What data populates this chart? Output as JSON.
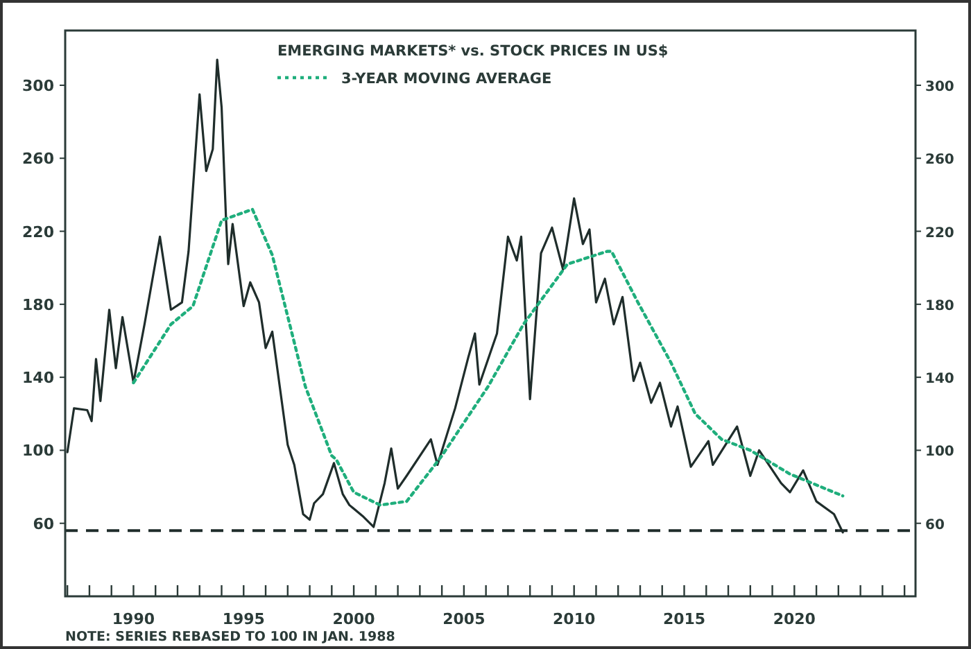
{
  "chart_data": {
    "type": "line",
    "title": "EMERGING MARKETS* vs. STOCK PRICES IN US$",
    "xlim": [
      1986.9,
      2025.5
    ],
    "xticks": [
      {
        "value": 1987,
        "label": null
      },
      {
        "value": 1988,
        "label": null
      },
      {
        "value": 1989,
        "label": null
      },
      1990,
      {
        "value": 1991,
        "label": null
      },
      {
        "value": 1992,
        "label": null
      },
      {
        "value": 1993,
        "label": null
      },
      {
        "value": 1994,
        "label": null
      },
      1995,
      {
        "value": 1996,
        "label": null
      },
      {
        "value": 1997,
        "label": null
      },
      {
        "value": 1998,
        "label": null
      },
      {
        "value": 1999,
        "label": null
      },
      2000,
      {
        "value": 2001,
        "label": null
      },
      {
        "value": 2002,
        "label": null
      },
      {
        "value": 2003,
        "label": null
      },
      {
        "value": 2004,
        "label": null
      },
      2005,
      {
        "value": 2006,
        "label": null
      },
      {
        "value": 2007,
        "label": null
      },
      {
        "value": 2008,
        "label": null
      },
      {
        "value": 2009,
        "label": null
      },
      2010,
      {
        "value": 2011,
        "label": null
      },
      {
        "value": 2012,
        "label": null
      },
      {
        "value": 2013,
        "label": null
      },
      {
        "value": 2014,
        "label": null
      },
      2015,
      {
        "value": 2016,
        "label": null
      },
      {
        "value": 2017,
        "label": null
      },
      {
        "value": 2018,
        "label": null
      },
      {
        "value": 2019,
        "label": null
      },
      2020,
      {
        "value": 2021,
        "label": null
      },
      {
        "value": 2022,
        "label": null
      },
      {
        "value": 2023,
        "label": null
      },
      {
        "value": 2024,
        "label": null
      },
      {
        "value": 2025,
        "label": null
      }
    ],
    "ylim": [
      20,
      330
    ],
    "yticks": [
      60,
      100,
      140,
      180,
      220,
      260,
      300
    ],
    "y2lim": [
      20,
      330
    ],
    "y2ticks": [
      60,
      100,
      140,
      180,
      220,
      260,
      300
    ],
    "grid": false,
    "legend": "top",
    "ref_lines": [
      {
        "axis": "y",
        "value": 56,
        "color": "#1f2d2b",
        "line_style": "dashed"
      }
    ],
    "annotations": [
      "NOTE: SERIES REBASED TO 100 IN JAN. 1988"
    ],
    "series": [
      {
        "color": "#1f2d2b",
        "line_style": "solid",
        "x": [
          1987.0,
          1987.3,
          1987.9,
          1988.1,
          1988.3,
          1988.5,
          1988.9,
          1989.2,
          1989.5,
          1990.0,
          1990.5,
          1991.2,
          1991.7,
          1992.2,
          1992.5,
          1993.0,
          1993.3,
          1993.6,
          1993.8,
          1994.0,
          1994.2,
          1994.3,
          1994.5,
          1995.0,
          1995.3,
          1995.7,
          1996.0,
          1996.3,
          1997.0,
          1997.3,
          1997.7,
          1998.0,
          1998.2,
          1998.6,
          1999.1,
          1999.5,
          1999.8,
          2000.4,
          2000.9,
          2001.4,
          2001.7,
          2002.0,
          2002.4,
          2003.5,
          2003.8,
          2004.6,
          2005.2,
          2005.5,
          2005.7,
          2006.5,
          2007.0,
          2007.4,
          2007.6,
          2008.0,
          2008.5,
          2009.0,
          2009.5,
          2010.0,
          2010.4,
          2010.7,
          2011.0,
          2011.4,
          2011.8,
          2012.2,
          2012.7,
          2013.0,
          2013.5,
          2013.9,
          2014.4,
          2014.7,
          2015.3,
          2016.1,
          2016.3,
          2017.4,
          2018.0,
          2018.4,
          2019.4,
          2019.8,
          2020.4,
          2021.0,
          2021.8,
          2022.2
        ],
        "values": [
          99,
          123,
          122,
          116,
          150,
          127,
          177,
          145,
          173,
          137,
          169,
          217,
          177,
          181,
          209,
          295,
          253,
          265,
          314,
          288,
          227,
          202,
          224,
          179,
          192,
          181,
          156,
          165,
          103,
          92,
          65,
          62,
          71,
          76,
          93,
          76,
          70,
          64,
          58,
          82,
          101,
          79,
          86,
          106,
          92,
          123,
          151,
          164,
          136,
          164,
          217,
          204,
          217,
          128,
          208,
          222,
          199,
          238,
          213,
          221,
          181,
          194,
          169,
          184,
          138,
          148,
          126,
          137,
          113,
          124,
          91,
          105,
          92,
          113,
          86,
          100,
          82,
          77,
          89,
          72,
          65,
          55
        ]
      },
      {
        "name": "3-YEAR MOVING AVERAGE",
        "color": "#1fae7c",
        "line_style": "dotted",
        "x": [
          1990.0,
          1991.7,
          1992.7,
          1994.0,
          1995.4,
          1996.3,
          1997.8,
          1999.0,
          1999.2,
          2000.0,
          2001.2,
          2002.4,
          2004.0,
          2006.1,
          2007.7,
          2009.7,
          2011.5,
          2011.7,
          2012.9,
          2014.4,
          2015.5,
          2016.7,
          2018.0,
          2019.8,
          2022.2
        ],
        "values": [
          137,
          169,
          179,
          226,
          232,
          207,
          135,
          97,
          95,
          77,
          70,
          72,
          97,
          135,
          169,
          202,
          209,
          209,
          181,
          148,
          120,
          106,
          100,
          87,
          75
        ]
      }
    ]
  }
}
